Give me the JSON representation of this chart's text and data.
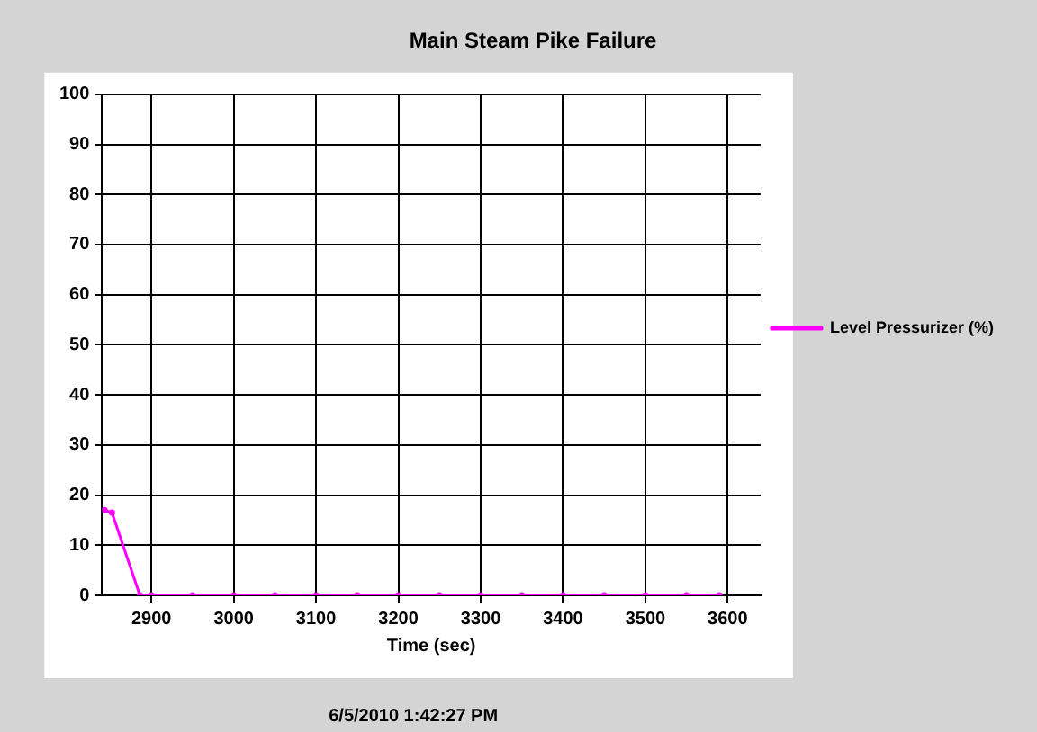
{
  "chart_data": {
    "type": "line",
    "title": "Main Steam Pike Failure",
    "xlabel": "Time (sec)",
    "annotations": [
      "6/5/2010 1:42:27 PM"
    ],
    "x": [
      2843,
      2852,
      2886,
      2900,
      2950,
      3000,
      3050,
      3100,
      3150,
      3200,
      3250,
      3300,
      3350,
      3400,
      3450,
      3500,
      3550,
      3590
    ],
    "series": [
      {
        "name": "Level Pressurizer (%)",
        "color": "#ff00ff",
        "values": [
          17,
          16.5,
          0,
          0,
          0,
          0,
          0,
          0,
          0,
          0,
          0,
          0,
          0,
          0,
          0,
          0,
          0,
          0
        ]
      }
    ],
    "xlim": [
      2840,
      3640
    ],
    "xticks": [
      2900,
      3000,
      3100,
      3200,
      3300,
      3400,
      3500,
      3600
    ],
    "ylim": [
      0,
      100
    ],
    "yticks": [
      0,
      10,
      20,
      30,
      40,
      50,
      60,
      70,
      80,
      90,
      100
    ],
    "grid": true,
    "legend": "right",
    "marker": "circle",
    "line_style": "solid"
  }
}
